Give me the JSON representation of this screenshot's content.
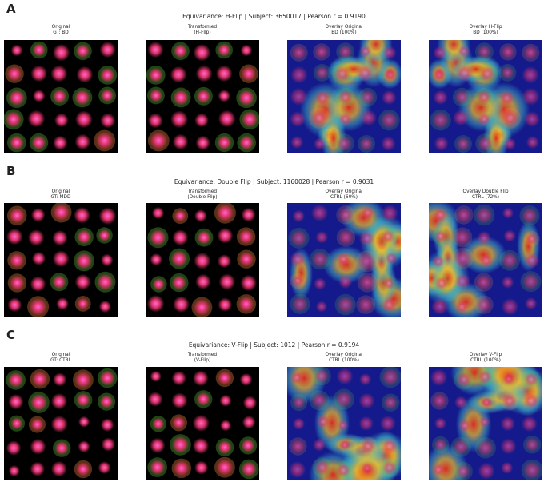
{
  "panels": [
    {
      "letter": "A",
      "title": "Equivariance: H-Flip | Subject: 3650017 | Pearson r = 0.9190",
      "tiles": [
        {
          "line1": "Original",
          "line2": "GT: BD",
          "kind": "cells",
          "seed": 11
        },
        {
          "line1": "Transformed",
          "line2": "(H-Flip)",
          "kind": "cells",
          "seed": 11,
          "flip": "h"
        },
        {
          "line1": "Overlay Original",
          "line2": "BD (100%)",
          "kind": "overlay",
          "seed": 11
        },
        {
          "line1": "Overlay H-Flip",
          "line2": "BD (100%)",
          "kind": "overlay",
          "seed": 11,
          "flip": "h"
        }
      ]
    },
    {
      "letter": "B",
      "title": "Equivariance: Double Flip | Subject: 1160028 | Pearson r = 0.9031",
      "tiles": [
        {
          "line1": "Original",
          "line2": "GT: MDD",
          "kind": "cells",
          "seed": 23
        },
        {
          "line1": "Transformed",
          "line2": "(Double Flip)",
          "kind": "cells",
          "seed": 23,
          "flip": "hv"
        },
        {
          "line1": "Overlay Original",
          "line2": "CTRL (60%)",
          "kind": "overlay",
          "seed": 23
        },
        {
          "line1": "Overlay Double Flip",
          "line2": "CTRL (72%)",
          "kind": "overlay",
          "seed": 23,
          "flip": "hv"
        }
      ]
    },
    {
      "letter": "C",
      "title": "Equivariance: V-Flip | Subject: 1012 | Pearson r = 0.9194",
      "tiles": [
        {
          "line1": "Original",
          "line2": "GT: CTRL",
          "kind": "cells",
          "seed": 37
        },
        {
          "line1": "Transformed",
          "line2": "(V-Flip)",
          "kind": "cells",
          "seed": 37,
          "flip": "v"
        },
        {
          "line1": "Overlay Original",
          "line2": "CTRL (100%)",
          "kind": "overlay",
          "seed": 37
        },
        {
          "line1": "Overlay V-Flip",
          "line2": "CTRL (100%)",
          "kind": "overlay",
          "seed": 37,
          "flip": "v"
        }
      ]
    }
  ],
  "colors": {
    "background": "#000000",
    "cell_core": "#e0356a",
    "cell_glow": "#ff8a3d",
    "cell_green": "#5fc23a",
    "heat_low": "#141a8c",
    "heat_mid": "#3fb9c9",
    "heat_high": "#e02a1c"
  }
}
